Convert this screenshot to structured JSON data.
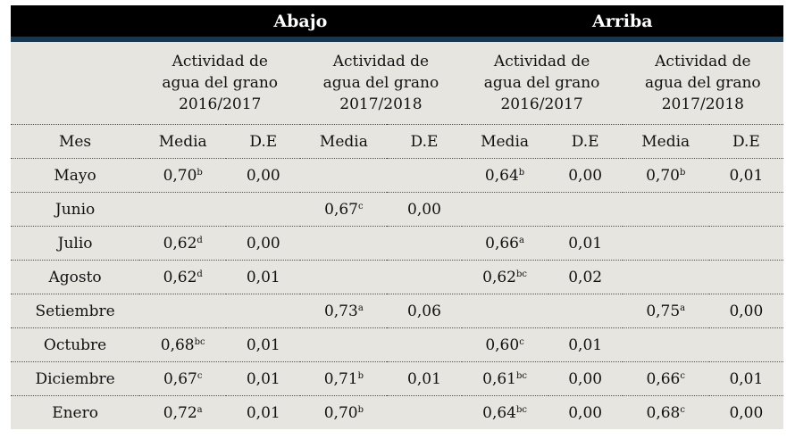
{
  "header": {
    "group_left": "Abajo",
    "group_right": "Arriba"
  },
  "subheaders": [
    {
      "l1": "Actividad de",
      "l2": "agua del grano",
      "l3": "2016/2017"
    },
    {
      "l1": "Actividad de",
      "l2": "agua del grano",
      "l3": "2017/2018"
    },
    {
      "l1": "Actividad de",
      "l2": "agua del grano",
      "l3": "2016/2017"
    },
    {
      "l1": "Actividad de",
      "l2": "agua del grano",
      "l3": "2017/2018"
    }
  ],
  "columns": {
    "mes": "Mes",
    "media": "Media",
    "de": "D.E"
  },
  "rows": [
    {
      "mes": "Mayo",
      "c": [
        {
          "v": "0,70",
          "s": "b"
        },
        {
          "v": "0,00",
          "s": ""
        },
        {
          "v": "",
          "s": ""
        },
        {
          "v": "",
          "s": ""
        },
        {
          "v": "0,64",
          "s": "b"
        },
        {
          "v": "0,00",
          "s": ""
        },
        {
          "v": "0,70",
          "s": "b"
        },
        {
          "v": "0,01",
          "s": ""
        }
      ]
    },
    {
      "mes": "Junio",
      "c": [
        {
          "v": "",
          "s": ""
        },
        {
          "v": "",
          "s": ""
        },
        {
          "v": "0,67",
          "s": "c"
        },
        {
          "v": "0,00",
          "s": ""
        },
        {
          "v": "",
          "s": ""
        },
        {
          "v": "",
          "s": ""
        },
        {
          "v": "",
          "s": ""
        },
        {
          "v": "",
          "s": ""
        }
      ]
    },
    {
      "mes": "Julio",
      "c": [
        {
          "v": "0,62",
          "s": "d"
        },
        {
          "v": "0,00",
          "s": ""
        },
        {
          "v": "",
          "s": ""
        },
        {
          "v": "",
          "s": ""
        },
        {
          "v": "0,66",
          "s": "a"
        },
        {
          "v": "0,01",
          "s": ""
        },
        {
          "v": "",
          "s": ""
        },
        {
          "v": "",
          "s": ""
        }
      ]
    },
    {
      "mes": "Agosto",
      "c": [
        {
          "v": "0,62",
          "s": "d"
        },
        {
          "v": "0,01",
          "s": ""
        },
        {
          "v": "",
          "s": ""
        },
        {
          "v": "",
          "s": ""
        },
        {
          "v": "0,62",
          "s": "bc"
        },
        {
          "v": "0,02",
          "s": ""
        },
        {
          "v": "",
          "s": ""
        },
        {
          "v": "",
          "s": ""
        }
      ]
    },
    {
      "mes": "Setiembre",
      "c": [
        {
          "v": "",
          "s": ""
        },
        {
          "v": "",
          "s": ""
        },
        {
          "v": "0,73",
          "s": "a"
        },
        {
          "v": "0,06",
          "s": ""
        },
        {
          "v": "",
          "s": ""
        },
        {
          "v": "",
          "s": ""
        },
        {
          "v": "0,75",
          "s": "a"
        },
        {
          "v": "0,00",
          "s": ""
        }
      ]
    },
    {
      "mes": "Octubre",
      "c": [
        {
          "v": "0,68",
          "s": "bc"
        },
        {
          "v": "0,01",
          "s": ""
        },
        {
          "v": "",
          "s": ""
        },
        {
          "v": "",
          "s": ""
        },
        {
          "v": "0,60",
          "s": "c"
        },
        {
          "v": "0,01",
          "s": ""
        },
        {
          "v": "",
          "s": ""
        },
        {
          "v": "",
          "s": ""
        }
      ]
    },
    {
      "mes": "Diciembre",
      "c": [
        {
          "v": "0,67",
          "s": "c"
        },
        {
          "v": "0,01",
          "s": ""
        },
        {
          "v": "0,71",
          "s": "b"
        },
        {
          "v": "0,01",
          "s": ""
        },
        {
          "v": "0,61",
          "s": "bc"
        },
        {
          "v": "0,00",
          "s": ""
        },
        {
          "v": "0,66",
          "s": "c"
        },
        {
          "v": "0,01",
          "s": ""
        }
      ]
    },
    {
      "mes": "Enero",
      "c": [
        {
          "v": "0,72",
          "s": "a"
        },
        {
          "v": "0,01",
          "s": ""
        },
        {
          "v": "0,70",
          "s": "b"
        },
        {
          "v": "",
          "s": ""
        },
        {
          "v": "0,64",
          "s": "bc"
        },
        {
          "v": "0,00",
          "s": ""
        },
        {
          "v": "0,68",
          "s": "c"
        },
        {
          "v": "0,00",
          "s": ""
        }
      ]
    }
  ]
}
